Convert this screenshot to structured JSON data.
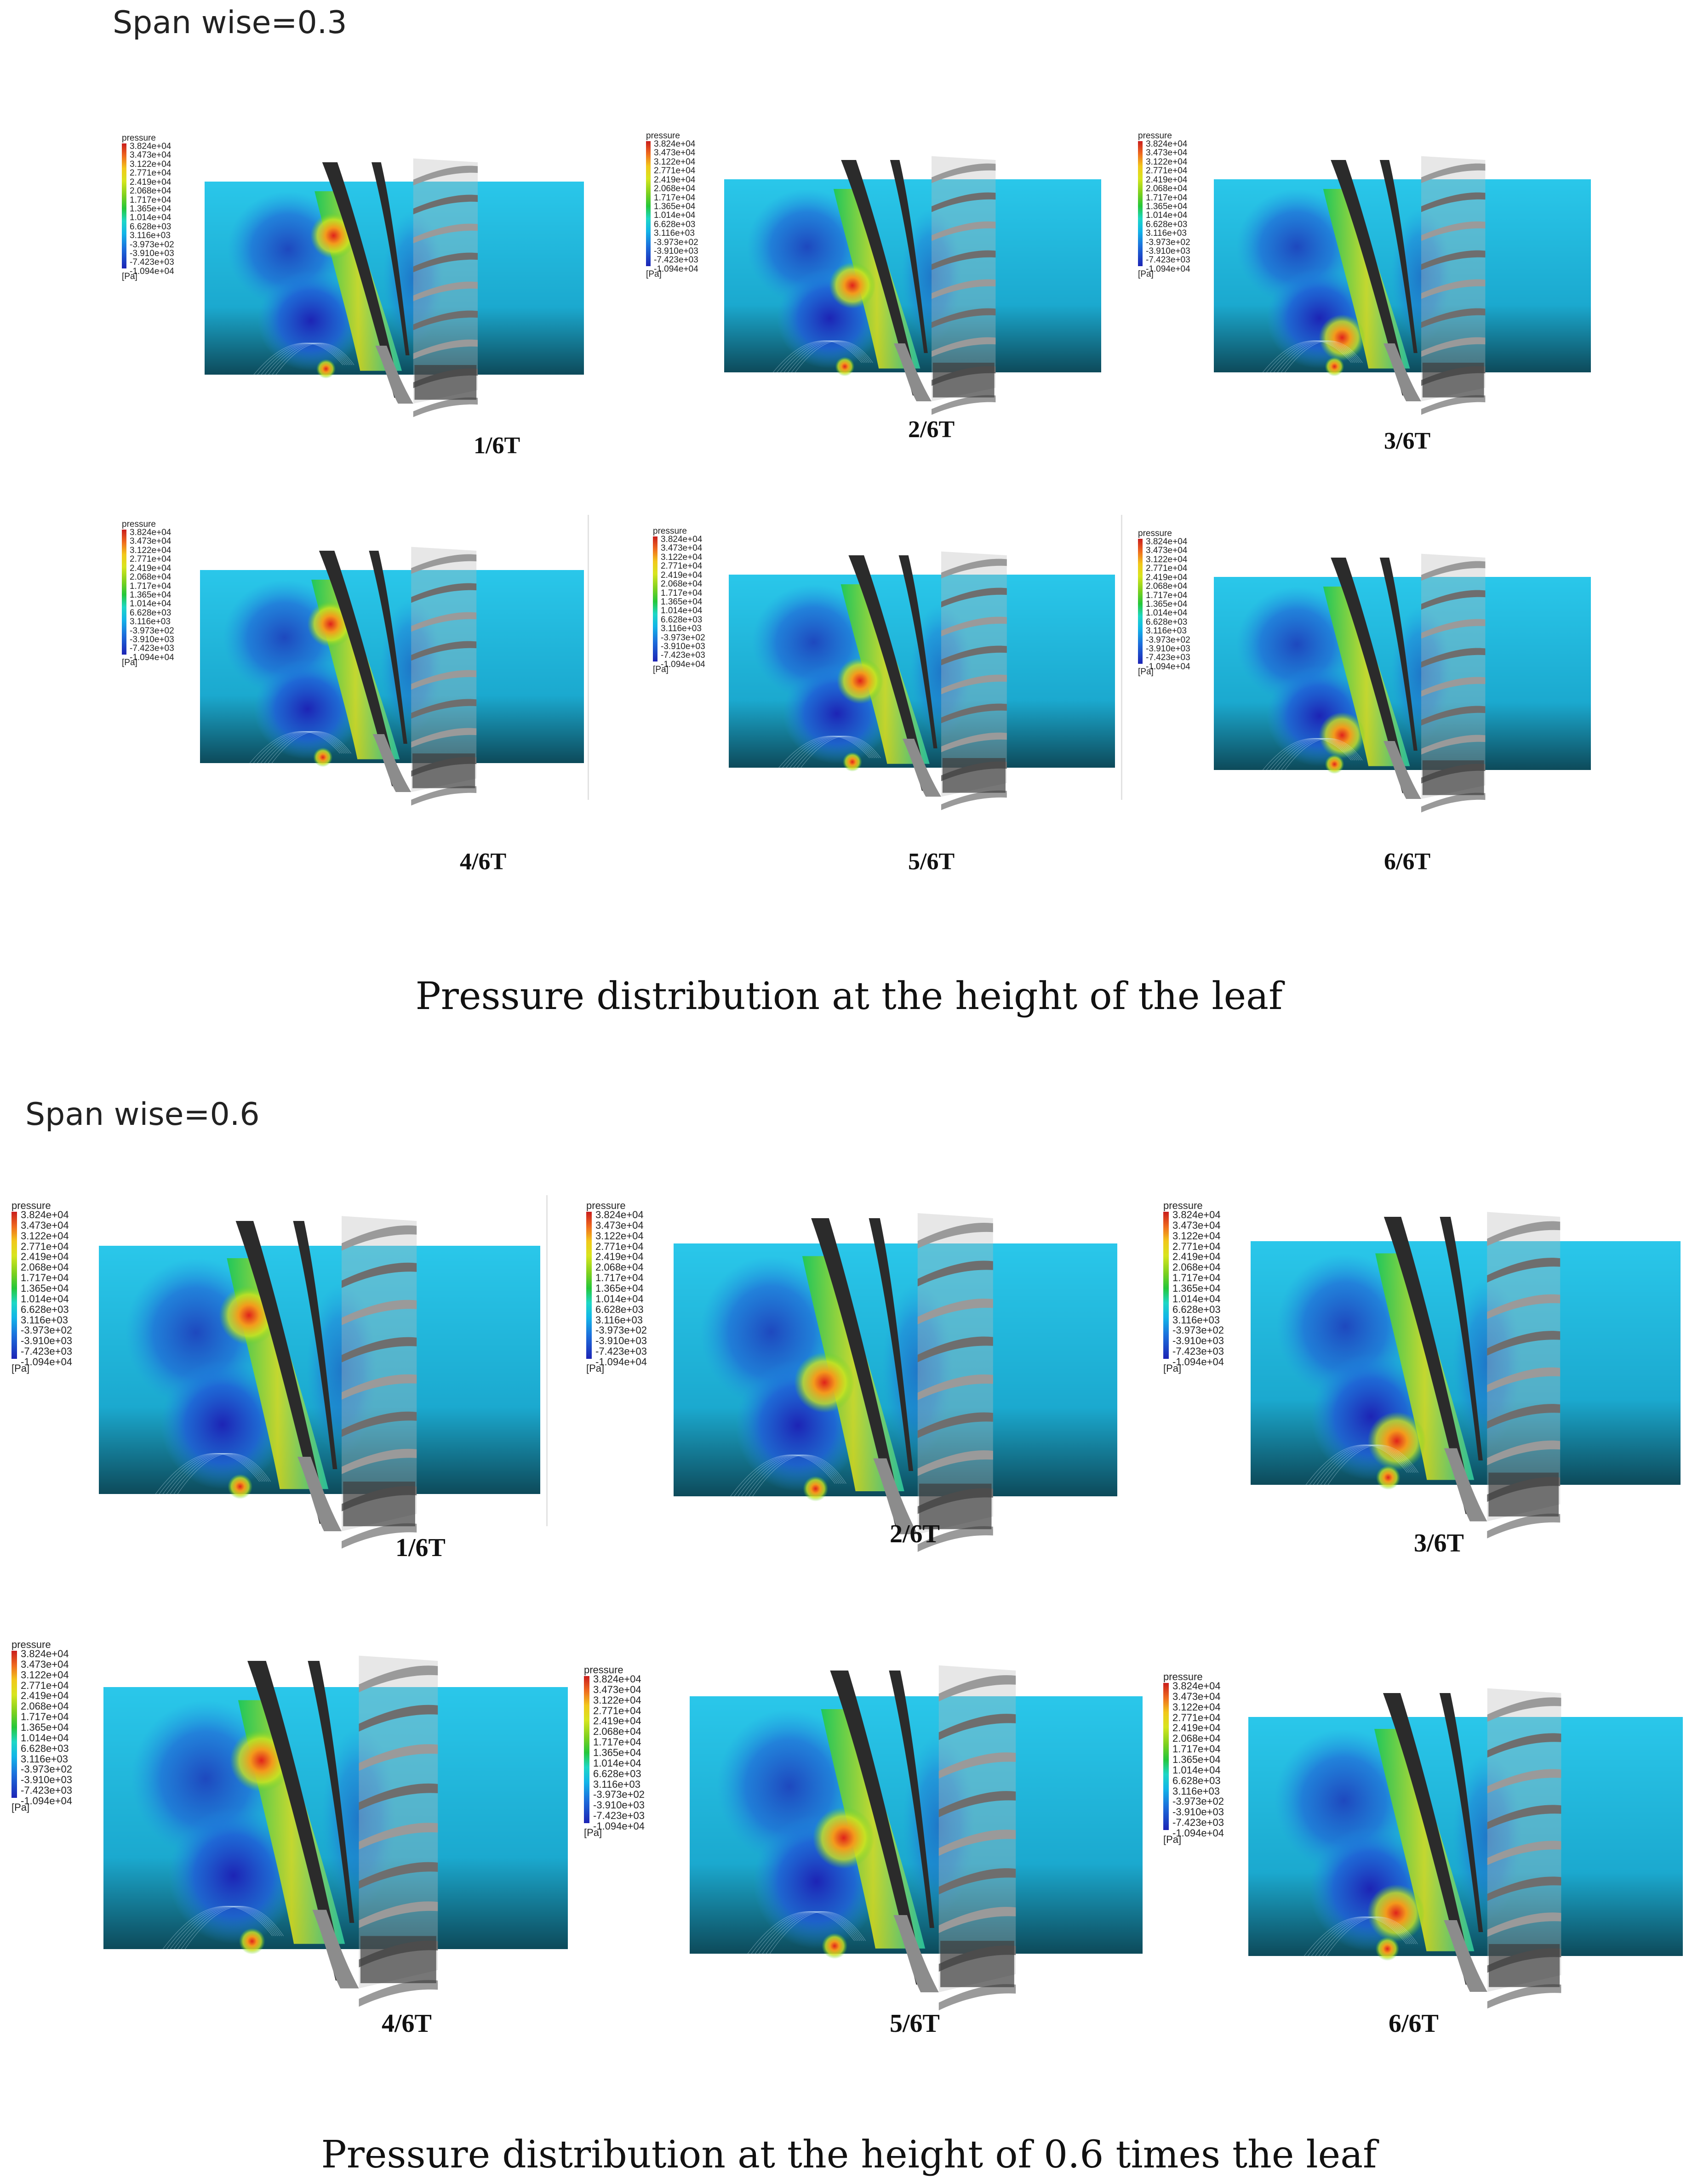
{
  "sections": [
    {
      "label": "Span wise=0.3",
      "caption": "Pressure distribution at the height of the leaf",
      "panels": [
        {
          "time": "1/6T",
          "hot_spot": "upper"
        },
        {
          "time": "2/6T",
          "hot_spot": "middle"
        },
        {
          "time": "3/6T",
          "hot_spot": "lower"
        },
        {
          "time": "4/6T",
          "hot_spot": "upper"
        },
        {
          "time": "5/6T",
          "hot_spot": "middle"
        },
        {
          "time": "6/6T",
          "hot_spot": "lower"
        }
      ]
    },
    {
      "label": "Span wise=0.6",
      "caption": "Pressure distribution at the height of 0.6 times the leaf",
      "panels": [
        {
          "time": "1/6T",
          "hot_spot": "upper"
        },
        {
          "time": "2/6T",
          "hot_spot": "middle"
        },
        {
          "time": "3/6T",
          "hot_spot": "lower"
        },
        {
          "time": "4/6T",
          "hot_spot": "upper"
        },
        {
          "time": "5/6T",
          "hot_spot": "middle"
        },
        {
          "time": "6/6T",
          "hot_spot": "lower"
        }
      ]
    }
  ],
  "legend": {
    "title": "pressure",
    "values": [
      "3.824e+04",
      "3.473e+04",
      "3.122e+04",
      "2.771e+04",
      "2.419e+04",
      "2.068e+04",
      "1.717e+04",
      "1.365e+04",
      "1.014e+04",
      "6.628e+03",
      "3.116e+03",
      "-3.973e+02",
      "-3.910e+03",
      "-7.423e+03",
      "-1.094e+04"
    ],
    "unit": "[Pa]"
  },
  "colors": {
    "field_base": "#1fc4e6",
    "low_pressure": "#1d24b5",
    "high_pressure": "#e0231b",
    "blade_dark": "#2b2b2b",
    "blade_grey": "#8c8c8c"
  }
}
